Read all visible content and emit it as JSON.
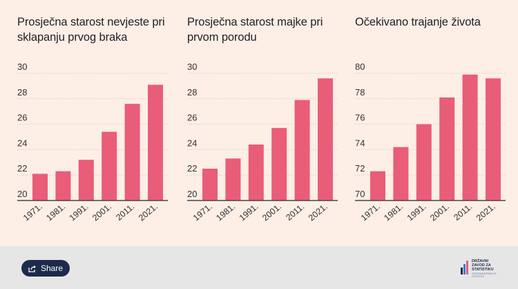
{
  "chart_data": [
    {
      "type": "bar",
      "title": "Prosječna starost nevjeste pri sklapanju prvog braka",
      "categories": [
        "1971.",
        "1981.",
        "1991.",
        "2001.",
        "2011.",
        "2021."
      ],
      "values": [
        22.1,
        22.3,
        23.2,
        25.4,
        27.6,
        29.1
      ],
      "ylim": [
        20,
        30
      ],
      "yticks": [
        "20",
        "22",
        "24",
        "26",
        "28",
        "30"
      ],
      "color": "#e95d78"
    },
    {
      "type": "bar",
      "title": "Prosječna starost majke pri prvom porodu",
      "categories": [
        "1971.",
        "1981.",
        "1991.",
        "2001.",
        "2011.",
        "2021."
      ],
      "values": [
        22.5,
        23.3,
        24.4,
        25.7,
        27.9,
        29.6
      ],
      "ylim": [
        20,
        30
      ],
      "yticks": [
        "20",
        "22",
        "24",
        "26",
        "28",
        "30"
      ],
      "color": "#e95d78"
    },
    {
      "type": "bar",
      "title": "Očekivano trajanje života",
      "categories": [
        "1971.",
        "1981.",
        "1991.",
        "2001.",
        "2011.",
        "2021."
      ],
      "values": [
        72.3,
        74.2,
        76.0,
        78.1,
        79.9,
        79.6
      ],
      "ylim": [
        70,
        80
      ],
      "yticks": [
        "70",
        "72",
        "74",
        "76",
        "78",
        "80"
      ],
      "color": "#e95d78"
    }
  ],
  "footer": {
    "share_label": "Share",
    "logo_text": "DRŽAVNI ZAVOD ZA STATISTIKU",
    "logo_subtext": "CROATIAN BUREAU OF STATISTICS"
  }
}
